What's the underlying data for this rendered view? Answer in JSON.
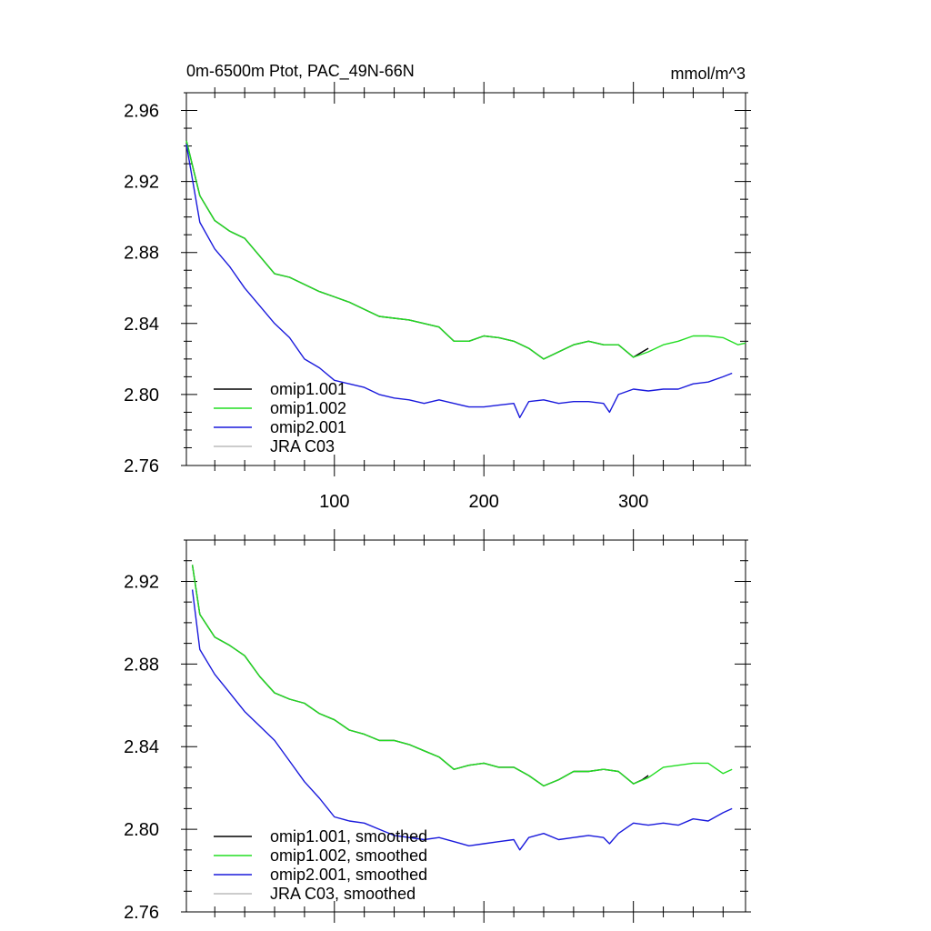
{
  "title_left": "0m-6500m Ptot, PAC_49N-66N",
  "title_right": "mmol/m^3",
  "chart_data": [
    {
      "type": "line",
      "x_range": [
        1,
        375
      ],
      "ylim": [
        2.76,
        2.97
      ],
      "x_ticks": [
        100,
        200,
        300
      ],
      "y_ticks": [
        2.76,
        2.8,
        2.84,
        2.88,
        2.92,
        2.96
      ],
      "y_tick_labels": [
        "2.76",
        "2.80",
        "2.84",
        "2.88",
        "2.92",
        "2.96"
      ],
      "x_tick_labels": [
        "100",
        "200",
        "300"
      ],
      "legend_position": "bottom-left",
      "series": [
        {
          "name": "omip1.001",
          "color": "#000000",
          "x": [
            1,
            10,
            20,
            30,
            40,
            50,
            60,
            70,
            80,
            90,
            100,
            110,
            120,
            130,
            140,
            150,
            160,
            170,
            180,
            190,
            200,
            210,
            220,
            230,
            240,
            250,
            260,
            270,
            280,
            290,
            300,
            306,
            310
          ],
          "y": [
            2.943,
            2.912,
            2.898,
            2.892,
            2.888,
            2.878,
            2.868,
            2.866,
            2.862,
            2.858,
            2.855,
            2.852,
            2.848,
            2.844,
            2.843,
            2.842,
            2.84,
            2.838,
            2.83,
            2.83,
            2.833,
            2.832,
            2.83,
            2.826,
            2.82,
            2.824,
            2.828,
            2.83,
            2.828,
            2.828,
            2.821,
            2.824,
            2.826
          ]
        },
        {
          "name": "omip1.002",
          "color": "#22dd22",
          "x": [
            1,
            10,
            20,
            30,
            40,
            50,
            60,
            70,
            80,
            90,
            100,
            110,
            120,
            130,
            140,
            150,
            160,
            170,
            180,
            190,
            200,
            210,
            220,
            230,
            240,
            250,
            260,
            270,
            280,
            290,
            300,
            310,
            320,
            330,
            340,
            350,
            360,
            370,
            375
          ],
          "y": [
            2.943,
            2.912,
            2.898,
            2.892,
            2.888,
            2.878,
            2.868,
            2.866,
            2.862,
            2.858,
            2.855,
            2.852,
            2.848,
            2.844,
            2.843,
            2.842,
            2.84,
            2.838,
            2.83,
            2.83,
            2.833,
            2.832,
            2.83,
            2.826,
            2.82,
            2.824,
            2.828,
            2.83,
            2.828,
            2.828,
            2.821,
            2.824,
            2.828,
            2.83,
            2.833,
            2.833,
            2.832,
            2.828,
            2.829
          ]
        },
        {
          "name": "omip2.001",
          "color": "#1a1adc",
          "x": [
            1,
            10,
            20,
            30,
            40,
            50,
            60,
            70,
            80,
            90,
            100,
            110,
            120,
            130,
            140,
            150,
            160,
            170,
            180,
            190,
            200,
            210,
            220,
            224,
            230,
            240,
            250,
            260,
            270,
            280,
            284,
            290,
            300,
            310,
            320,
            330,
            340,
            350,
            360,
            366
          ],
          "y": [
            2.941,
            2.897,
            2.882,
            2.872,
            2.86,
            2.85,
            2.84,
            2.832,
            2.82,
            2.815,
            2.808,
            2.806,
            2.804,
            2.8,
            2.798,
            2.797,
            2.795,
            2.797,
            2.795,
            2.793,
            2.793,
            2.794,
            2.795,
            2.787,
            2.796,
            2.797,
            2.795,
            2.796,
            2.796,
            2.795,
            2.79,
            2.8,
            2.803,
            2.802,
            2.803,
            2.803,
            2.806,
            2.807,
            2.81,
            2.812
          ]
        },
        {
          "name": "JRA C03",
          "color": "#bbbbbb",
          "x": [],
          "y": []
        }
      ]
    },
    {
      "type": "line",
      "x_range": [
        1,
        375
      ],
      "ylim": [
        2.76,
        2.94
      ],
      "x_ticks": [
        100,
        200,
        300
      ],
      "y_ticks": [
        2.76,
        2.8,
        2.84,
        2.88,
        2.92
      ],
      "y_tick_labels": [
        "2.76",
        "2.80",
        "2.84",
        "2.88",
        "2.92"
      ],
      "x_tick_labels": [],
      "legend_position": "bottom-left",
      "series": [
        {
          "name": "omip1.001, smoothed",
          "color": "#000000",
          "x": [
            5,
            10,
            20,
            30,
            40,
            50,
            60,
            70,
            80,
            90,
            100,
            110,
            120,
            130,
            140,
            150,
            160,
            170,
            180,
            190,
            200,
            210,
            220,
            230,
            240,
            250,
            260,
            270,
            280,
            290,
            300,
            306,
            310
          ],
          "y": [
            2.928,
            2.904,
            2.893,
            2.889,
            2.884,
            2.874,
            2.866,
            2.863,
            2.861,
            2.856,
            2.853,
            2.848,
            2.846,
            2.843,
            2.843,
            2.841,
            2.838,
            2.835,
            2.829,
            2.831,
            2.832,
            2.83,
            2.83,
            2.826,
            2.821,
            2.824,
            2.828,
            2.828,
            2.829,
            2.828,
            2.822,
            2.824,
            2.826
          ]
        },
        {
          "name": "omip1.002, smoothed",
          "color": "#22dd22",
          "x": [
            5,
            10,
            20,
            30,
            40,
            50,
            60,
            70,
            80,
            90,
            100,
            110,
            120,
            130,
            140,
            150,
            160,
            170,
            180,
            190,
            200,
            210,
            220,
            230,
            240,
            250,
            260,
            270,
            280,
            290,
            300,
            310,
            320,
            330,
            340,
            350,
            360,
            366
          ],
          "y": [
            2.928,
            2.904,
            2.893,
            2.889,
            2.884,
            2.874,
            2.866,
            2.863,
            2.861,
            2.856,
            2.853,
            2.848,
            2.846,
            2.843,
            2.843,
            2.841,
            2.838,
            2.835,
            2.829,
            2.831,
            2.832,
            2.83,
            2.83,
            2.826,
            2.821,
            2.824,
            2.828,
            2.828,
            2.829,
            2.828,
            2.822,
            2.825,
            2.83,
            2.831,
            2.832,
            2.832,
            2.827,
            2.829
          ]
        },
        {
          "name": "omip2.001, smoothed",
          "color": "#1a1adc",
          "x": [
            5,
            10,
            20,
            30,
            40,
            50,
            60,
            70,
            80,
            90,
            100,
            110,
            120,
            130,
            140,
            150,
            160,
            170,
            180,
            190,
            200,
            210,
            220,
            224,
            230,
            240,
            250,
            260,
            270,
            280,
            284,
            290,
            300,
            310,
            320,
            330,
            340,
            350,
            360,
            366
          ],
          "y": [
            2.916,
            2.887,
            2.875,
            2.866,
            2.857,
            2.85,
            2.843,
            2.833,
            2.823,
            2.815,
            2.806,
            2.804,
            2.803,
            2.8,
            2.797,
            2.796,
            2.795,
            2.796,
            2.794,
            2.792,
            2.793,
            2.794,
            2.795,
            2.79,
            2.796,
            2.798,
            2.795,
            2.796,
            2.797,
            2.796,
            2.793,
            2.798,
            2.803,
            2.802,
            2.803,
            2.802,
            2.805,
            2.804,
            2.808,
            2.81
          ]
        },
        {
          "name": "JRA C03, smoothed",
          "color": "#bbbbbb",
          "x": [],
          "y": []
        }
      ]
    }
  ]
}
